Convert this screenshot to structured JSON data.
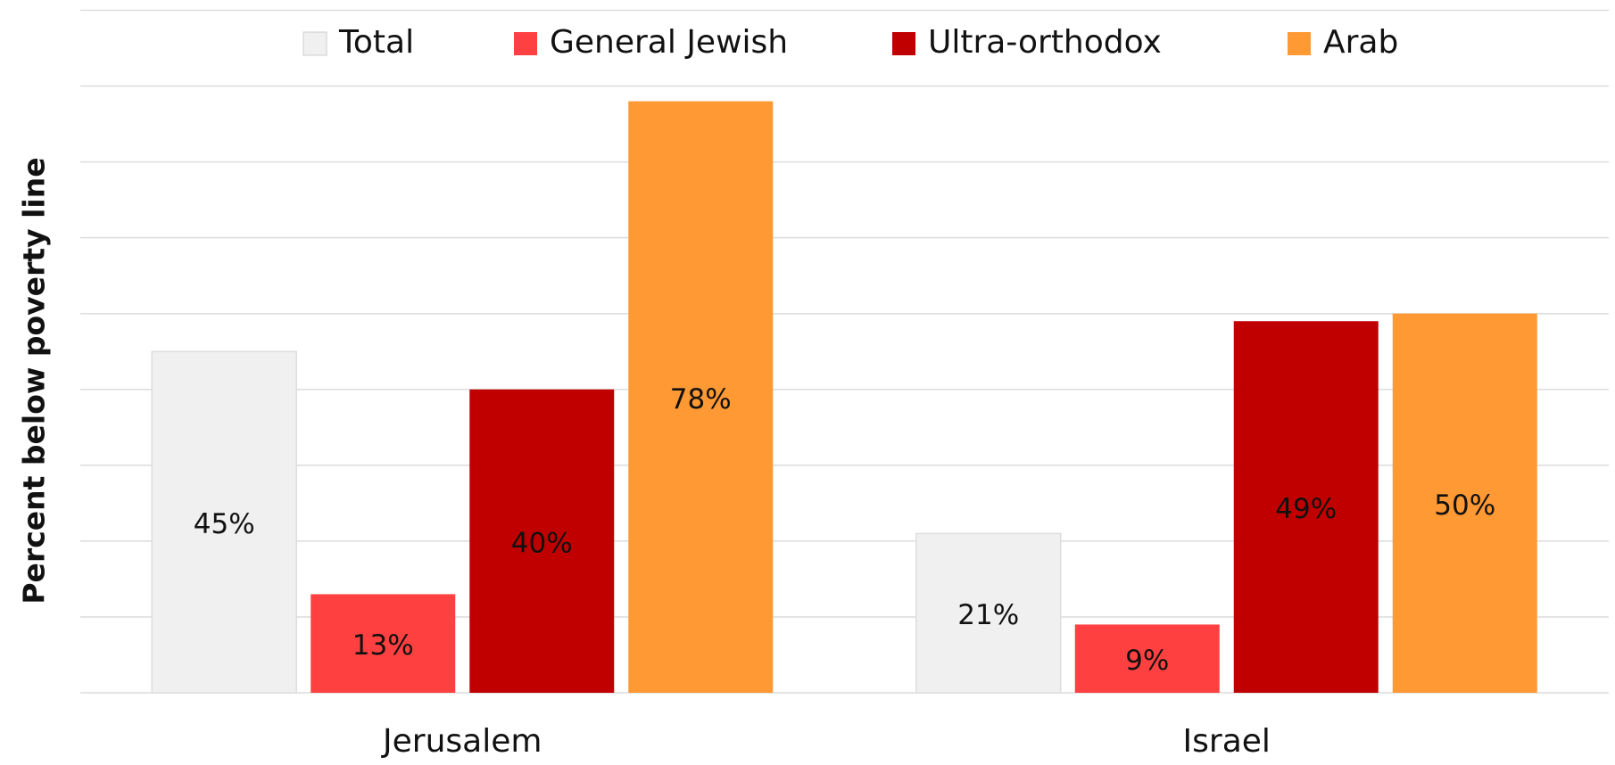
{
  "chart_data": {
    "type": "bar",
    "y_label": "Percent below poverty line",
    "categories": [
      "Jerusalem",
      "Israel"
    ],
    "series": [
      {
        "name": "Total",
        "color": "#f0f0f0",
        "values": [
          45,
          21
        ],
        "value_labels": [
          "45%",
          "21%"
        ]
      },
      {
        "name": "General Jewish",
        "color": "#ff4040",
        "values": [
          13,
          9
        ],
        "value_labels": [
          "13%",
          "9%"
        ]
      },
      {
        "name": "Ultra-orthodox",
        "color": "#c00000",
        "values": [
          40,
          49
        ],
        "value_labels": [
          "40%",
          "49%"
        ]
      },
      {
        "name": "Arab",
        "color": "#ff9933",
        "values": [
          78,
          50
        ],
        "value_labels": [
          "78%",
          "50%"
        ]
      }
    ],
    "ylim": [
      0,
      90
    ],
    "yticks": [
      0,
      10,
      20,
      30,
      40,
      50,
      60,
      70,
      80,
      90
    ],
    "grid": true,
    "legend": "top"
  }
}
